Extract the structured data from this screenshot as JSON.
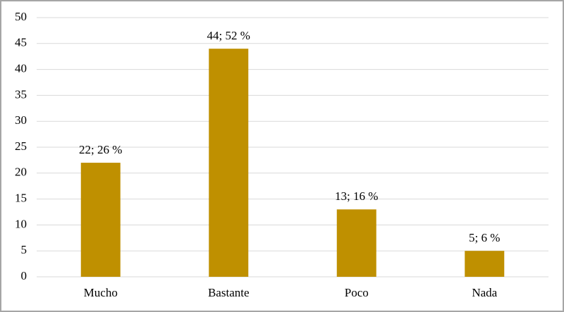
{
  "chart_data": {
    "type": "bar",
    "categories": [
      "Mucho",
      "Bastante",
      "Poco",
      "Nada"
    ],
    "values": [
      22,
      44,
      13,
      5
    ],
    "value_labels": [
      "22; 26 %",
      "44; 52 %",
      "13; 16 %",
      "5; 6 %"
    ],
    "color": "#bf9000",
    "ylim": [
      0,
      50
    ],
    "yticks": [
      0,
      5,
      10,
      15,
      20,
      25,
      30,
      35,
      40,
      45,
      50
    ],
    "grid": true
  }
}
